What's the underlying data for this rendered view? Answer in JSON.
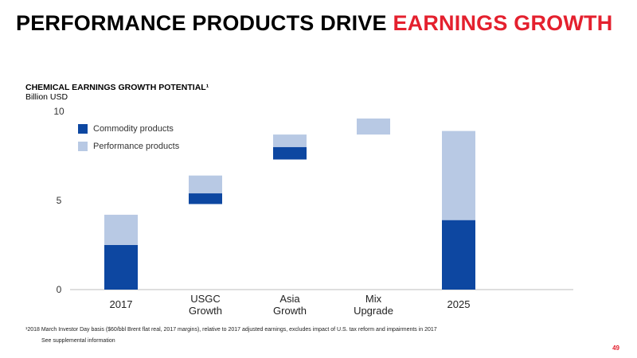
{
  "slide": {
    "title_main": "PERFORMANCE PRODUCTS DRIVE ",
    "title_accent": "EARNINGS GROWTH",
    "accent_color": "#e4202e",
    "footnote_1": "¹2018 March Investor Day basis ($60/bbl Brent flat real, 2017 margins), relative to 2017 adjusted earnings, excludes impact of U.S. tax reform and impairments in 2017",
    "footnote_2": "See supplemental information",
    "page_number": "49"
  },
  "chart_data": {
    "type": "bar",
    "subtype": "stacked-waterfall",
    "title": "CHEMICAL EARNINGS GROWTH POTENTIAL¹",
    "ylabel": "Billion USD",
    "ylim": [
      0,
      10
    ],
    "yticks": [
      "0",
      "5",
      "10"
    ],
    "categories": [
      "2017",
      "USGC\nGrowth",
      "Asia\nGrowth",
      "Mix\nUpgrade",
      "2025"
    ],
    "legend_placement": "top-left",
    "series": [
      {
        "name": "Commodity products",
        "color": "#0d47a1",
        "segments": [
          [
            0,
            2.5
          ],
          [
            4.8,
            5.4
          ],
          [
            7.3,
            8.0
          ],
          null,
          [
            0,
            3.9
          ]
        ]
      },
      {
        "name": "Performance products",
        "color": "#b8c9e4",
        "segments": [
          [
            2.5,
            4.2
          ],
          [
            5.4,
            6.4
          ],
          [
            8.0,
            8.7
          ],
          [
            8.7,
            9.6
          ],
          [
            3.9,
            8.9
          ]
        ]
      }
    ]
  }
}
